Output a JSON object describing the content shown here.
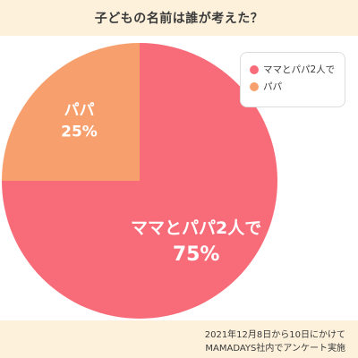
{
  "title": "子どもの名前は誰が考えた？",
  "footer": {
    "line1": "2021年12月8日から10日にかけて",
    "line2": "MAMADAYS社内でアンケート実施"
  },
  "colors": {
    "header_bg": "#fdf1dc",
    "both_parents": "#f76c78",
    "papa": "#f7a06e"
  },
  "chart_data": {
    "type": "pie",
    "title": "子どもの名前は誰が考えた？",
    "slices": [
      {
        "label": "ママとパパ2人で",
        "value": 75,
        "display": "75%",
        "color": "#f76c78"
      },
      {
        "label": "パパ",
        "value": 25,
        "display": "25%",
        "color": "#f7a06e"
      }
    ],
    "legend": {
      "placement": "top-right",
      "items": [
        "ママとパパ2人で",
        "パパ"
      ]
    }
  }
}
